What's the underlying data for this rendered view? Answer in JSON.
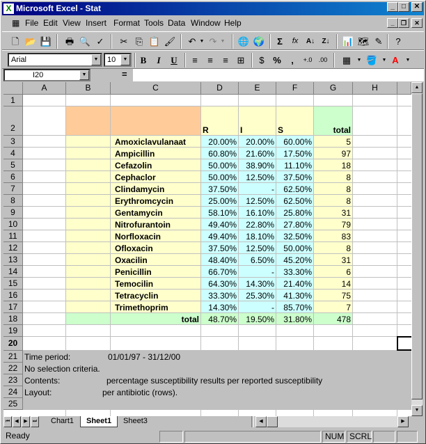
{
  "window": {
    "title": "Microsoft Excel - Stat",
    "app_icon": "excel-icon",
    "controls": [
      "minimize",
      "maximize",
      "close"
    ]
  },
  "menu": [
    "File",
    "Edit",
    "View",
    "Insert",
    "Format",
    "Tools",
    "Data",
    "Window",
    "Help"
  ],
  "formatting": {
    "font": "Arial",
    "size": "10"
  },
  "formula_bar": {
    "cell_ref": "I20",
    "equals": "=",
    "content": ""
  },
  "columns": [
    "A",
    "B",
    "C",
    "D",
    "E",
    "F",
    "G",
    "H"
  ],
  "rows": [
    "1",
    "2",
    "3",
    "4",
    "5",
    "6",
    "7",
    "8",
    "9",
    "10",
    "11",
    "12",
    "13",
    "14",
    "15",
    "16",
    "17",
    "18",
    "19",
    "20",
    "21",
    "22",
    "23",
    "24",
    "25"
  ],
  "colors": {
    "header_orange": "#ffcc99",
    "header_yellow": "#ffffcc",
    "total_green": "#ccffcc",
    "data_cyan": "#ccffff",
    "name_yellow": "#ffffcc",
    "footer_gray": "#c0c0c0"
  },
  "headers": {
    "r": "R",
    "i": "I",
    "s": "S",
    "total": "total"
  },
  "table": [
    {
      "name": "Amoxiclavulanaat",
      "r": "20.00%",
      "i": "20.00%",
      "s": "60.00%",
      "total": "5"
    },
    {
      "name": "Ampicillin",
      "r": "60.80%",
      "i": "21.60%",
      "s": "17.50%",
      "total": "97"
    },
    {
      "name": "Cefazolin",
      "r": "50.00%",
      "i": "38.90%",
      "s": "11.10%",
      "total": "18"
    },
    {
      "name": "Cephaclor",
      "r": "50.00%",
      "i": "12.50%",
      "s": "37.50%",
      "total": "8"
    },
    {
      "name": "Clindamycin",
      "r": "37.50%",
      "i": "-",
      "s": "62.50%",
      "total": "8"
    },
    {
      "name": "Erythromcycin",
      "r": "25.00%",
      "i": "12.50%",
      "s": "62.50%",
      "total": "8"
    },
    {
      "name": "Gentamycin",
      "r": "58.10%",
      "i": "16.10%",
      "s": "25.80%",
      "total": "31"
    },
    {
      "name": "Nitrofurantoin",
      "r": "49.40%",
      "i": "22.80%",
      "s": "27.80%",
      "total": "79"
    },
    {
      "name": "Norfloxacin",
      "r": "49.40%",
      "i": "18.10%",
      "s": "32.50%",
      "total": "83"
    },
    {
      "name": "Ofloxacin",
      "r": "37.50%",
      "i": "12.50%",
      "s": "50.00%",
      "total": "8"
    },
    {
      "name": "Oxacilin",
      "r": "48.40%",
      "i": "6.50%",
      "s": "45.20%",
      "total": "31"
    },
    {
      "name": "Penicillin",
      "r": "66.70%",
      "i": "-",
      "s": "33.30%",
      "total": "6"
    },
    {
      "name": "Temocilin",
      "r": "64.30%",
      "i": "14.30%",
      "s": "21.40%",
      "total": "14"
    },
    {
      "name": "Tetracyclin",
      "r": "33.30%",
      "i": "25.30%",
      "s": "41.30%",
      "total": "75"
    },
    {
      "name": "Trimethoprim",
      "r": "14.30%",
      "i": "-",
      "s": "85.70%",
      "total": "7"
    }
  ],
  "totals": {
    "label": "total",
    "r": "48.70%",
    "i": "19.50%",
    "s": "31.80%",
    "total": "478"
  },
  "footer": {
    "time_label": "Time period:",
    "time_value": "01/01/97  -  31/12/00",
    "selection": "No selection criteria.",
    "contents_label": "Contents:",
    "contents_value": "percentage susceptibility results per reported susceptibility",
    "layout_label": "Layout:",
    "layout_value": "per antibiotic (rows)."
  },
  "tabs": [
    "Chart1",
    "Sheet1",
    "Sheet3"
  ],
  "active_tab": "Sheet1",
  "status": {
    "ready": "Ready",
    "num": "NUM",
    "scrl": "SCRL"
  }
}
